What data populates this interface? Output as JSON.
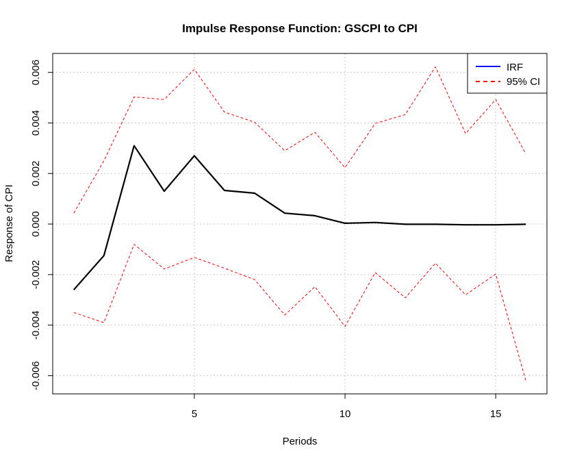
{
  "chart_data": {
    "type": "line",
    "title": "Impulse Response Function: GSCPI to CPI",
    "xlabel": "Periods",
    "ylabel": "Response of CPI",
    "xlim": [
      0.3,
      16.7
    ],
    "ylim": [
      -0.00672,
      0.00675
    ],
    "x_ticks": [
      5,
      10,
      15
    ],
    "y_ticks": [
      -0.006,
      -0.004,
      -0.002,
      0.0,
      0.002,
      0.004,
      0.006
    ],
    "y_tick_labels": [
      "-0.006",
      "-0.004",
      "-0.002",
      "0.000",
      "0.002",
      "0.004",
      "0.006"
    ],
    "grid": true,
    "legend_position": "top-right",
    "x": [
      1,
      2,
      3,
      4,
      5,
      6,
      7,
      8,
      9,
      10,
      11,
      12,
      13,
      14,
      15,
      16
    ],
    "series": [
      {
        "name": "IRF",
        "legend_color": "#0000ff",
        "color": "#000000",
        "style": "solid",
        "values": [
          -0.0026,
          -0.00125,
          0.0031,
          0.0013,
          0.0027,
          0.00133,
          0.00122,
          0.00043,
          0.00033,
          3e-05,
          6e-05,
          -1e-05,
          -1e-05,
          -3e-05,
          -3e-05,
          -1e-05
        ]
      },
      {
        "name": "95% CI",
        "legend_color": "#ff0000",
        "color": "#ff0000",
        "style": "dashed",
        "values": [
          0.00043,
          0.0025,
          0.00503,
          0.00493,
          0.00612,
          0.00443,
          0.00403,
          0.0029,
          0.00363,
          0.00223,
          0.00398,
          0.00433,
          0.00622,
          0.00358,
          0.00493,
          0.00278
        ]
      },
      {
        "name": "",
        "color": "#ff0000",
        "style": "dashed",
        "values": [
          -0.0035,
          -0.0039,
          -0.0008,
          -0.00178,
          -0.00132,
          -0.00175,
          -0.0022,
          -0.0036,
          -0.00248,
          -0.00405,
          -0.00192,
          -0.00292,
          -0.00155,
          -0.0028,
          -0.00198,
          -0.0062
        ]
      }
    ]
  }
}
